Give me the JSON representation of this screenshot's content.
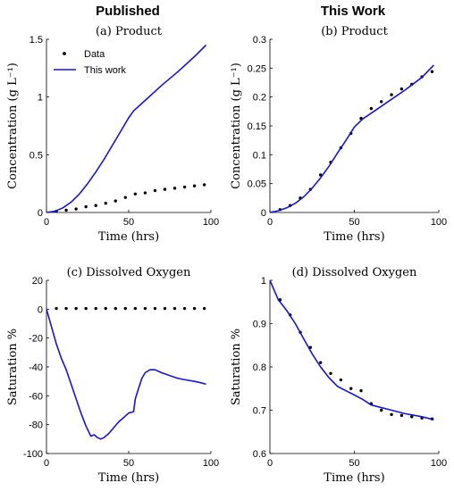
{
  "column_titles": {
    "left": "Published",
    "right": "This Work"
  },
  "colors": {
    "model": "#1515d6",
    "data": "#000000",
    "axis": "#000000"
  },
  "chart_data": [
    {
      "type": "line",
      "title": "(a) Product",
      "xlabel": "Time (hrs)",
      "ylabel": "Concentration (g L⁻¹)",
      "xlim": [
        0,
        100
      ],
      "ylim": [
        0,
        1.5
      ],
      "xticks": [
        0,
        50,
        100
      ],
      "yticks": [
        0,
        0.5,
        1,
        1.5
      ],
      "xtick_labels": [
        "0",
        "50",
        "100"
      ],
      "ytick_labels": [
        "0",
        "0.5",
        "1",
        "1.5"
      ],
      "legend": {
        "position": "top-left",
        "entries": [
          "Data",
          "This work"
        ]
      },
      "series": [
        {
          "name": "Data",
          "kind": "scatter",
          "x": [
            6,
            12,
            18,
            24,
            30,
            36,
            42,
            48,
            54,
            60,
            66,
            72,
            78,
            84,
            90,
            96
          ],
          "y": [
            0.01,
            0.02,
            0.03,
            0.05,
            0.06,
            0.08,
            0.1,
            0.13,
            0.16,
            0.17,
            0.19,
            0.2,
            0.21,
            0.22,
            0.23,
            0.24
          ]
        },
        {
          "name": "This work",
          "kind": "line",
          "x": [
            0,
            5,
            10,
            15,
            20,
            25,
            30,
            35,
            40,
            45,
            50,
            53,
            60,
            70,
            80,
            90,
            97
          ],
          "y": [
            0,
            0.01,
            0.04,
            0.09,
            0.16,
            0.25,
            0.35,
            0.46,
            0.58,
            0.7,
            0.82,
            0.88,
            0.97,
            1.1,
            1.22,
            1.35,
            1.45
          ]
        }
      ]
    },
    {
      "type": "line",
      "title": "(b) Product",
      "xlabel": "Time (hrs)",
      "ylabel": "Concentration (g L⁻¹)",
      "xlim": [
        0,
        100
      ],
      "ylim": [
        0,
        0.3
      ],
      "xticks": [
        0,
        50,
        100
      ],
      "yticks": [
        0,
        0.05,
        0.1,
        0.15,
        0.2,
        0.25,
        0.3
      ],
      "xtick_labels": [
        "0",
        "50",
        "100"
      ],
      "ytick_labels": [
        "0",
        "0.05",
        "0.1",
        "0.15",
        "0.2",
        "0.25",
        "0.3"
      ],
      "series": [
        {
          "kind": "scatter",
          "x": [
            6,
            12,
            18,
            24,
            30,
            36,
            42,
            48,
            54,
            60,
            66,
            72,
            78,
            84,
            90,
            96
          ],
          "y": [
            0.005,
            0.012,
            0.025,
            0.04,
            0.065,
            0.087,
            0.112,
            0.137,
            0.163,
            0.18,
            0.192,
            0.204,
            0.214,
            0.222,
            0.235,
            0.244
          ]
        },
        {
          "kind": "line",
          "x": [
            0,
            5,
            10,
            15,
            20,
            25,
            30,
            35,
            40,
            45,
            50,
            55,
            60,
            70,
            80,
            90,
            97
          ],
          "y": [
            0,
            0.003,
            0.008,
            0.016,
            0.027,
            0.042,
            0.06,
            0.08,
            0.103,
            0.125,
            0.148,
            0.162,
            0.172,
            0.192,
            0.212,
            0.234,
            0.255
          ]
        }
      ]
    },
    {
      "type": "line",
      "title": "(c) Dissolved Oxygen",
      "xlabel": "Time (hrs)",
      "ylabel": "Saturation %",
      "xlim": [
        0,
        100
      ],
      "ylim": [
        -100,
        20
      ],
      "xticks": [
        0,
        50,
        100
      ],
      "yticks": [
        -100,
        -80,
        -60,
        -40,
        -20,
        0,
        20
      ],
      "xtick_labels": [
        "0",
        "50",
        "100"
      ],
      "ytick_labels": [
        "-100",
        "-80",
        "-60",
        "-40",
        "-20",
        "0",
        "20"
      ],
      "series": [
        {
          "kind": "scatter",
          "x": [
            6,
            12,
            18,
            24,
            30,
            36,
            42,
            48,
            54,
            60,
            66,
            72,
            78,
            84,
            90,
            96
          ],
          "y": [
            0.5,
            0.5,
            0.5,
            0.5,
            0.5,
            0.5,
            0.5,
            0.5,
            0.5,
            0.5,
            0.5,
            0.5,
            0.5,
            0.5,
            0.5,
            0.5
          ]
        },
        {
          "kind": "line",
          "x": [
            0,
            3,
            6,
            9,
            12,
            15,
            18,
            21,
            24,
            27,
            29,
            31,
            33,
            35,
            38,
            41,
            44,
            47,
            50,
            53,
            54,
            56,
            58,
            60,
            63,
            66,
            70,
            75,
            80,
            85,
            90,
            94,
            97
          ],
          "y": [
            0,
            -12,
            -24,
            -34,
            -42,
            -52,
            -62,
            -72,
            -81,
            -88,
            -87,
            -89,
            -90,
            -89,
            -86,
            -82,
            -78,
            -75,
            -72,
            -71,
            -62,
            -55,
            -48,
            -44,
            -42,
            -42,
            -44,
            -46,
            -48,
            -49,
            -50,
            -51,
            -52
          ]
        }
      ]
    },
    {
      "type": "line",
      "title": "(d) Dissolved Oxygen",
      "xlabel": "Time (hrs)",
      "ylabel": "Saturation %",
      "xlim": [
        0,
        100
      ],
      "ylim": [
        0.6,
        1
      ],
      "xticks": [
        0,
        50,
        100
      ],
      "yticks": [
        0.6,
        0.7,
        0.8,
        0.9,
        1
      ],
      "xtick_labels": [
        "0",
        "50",
        "100"
      ],
      "ytick_labels": [
        "0.6",
        "0.7",
        "0.8",
        "0.9",
        "1"
      ],
      "series": [
        {
          "kind": "scatter",
          "x": [
            6,
            12,
            18,
            24,
            30,
            36,
            42,
            48,
            54,
            60,
            66,
            72,
            78,
            84,
            90,
            96
          ],
          "y": [
            0.955,
            0.92,
            0.88,
            0.845,
            0.81,
            0.785,
            0.77,
            0.75,
            0.745,
            0.715,
            0.7,
            0.69,
            0.688,
            0.685,
            0.682,
            0.68
          ]
        },
        {
          "kind": "line",
          "x": [
            0,
            5,
            10,
            15,
            20,
            25,
            30,
            35,
            40,
            45,
            50,
            55,
            60,
            70,
            80,
            90,
            97
          ],
          "y": [
            1.0,
            0.955,
            0.93,
            0.9,
            0.865,
            0.83,
            0.8,
            0.775,
            0.755,
            0.745,
            0.735,
            0.725,
            0.712,
            0.702,
            0.692,
            0.685,
            0.678
          ]
        }
      ]
    }
  ]
}
